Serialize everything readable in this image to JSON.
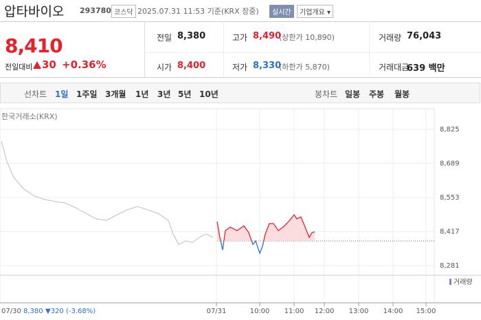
{
  "header": {
    "name": "압타바이오",
    "code": "293780",
    "market": "코스닥",
    "time": "2025.07.31 11:53 기준(KRX 장중)",
    "realtime_button": "실시간",
    "company_button": "기업개요"
  },
  "price": {
    "current": "8,410",
    "change_label": "전일대비",
    "change": "30",
    "change_rate": "+0.36%"
  },
  "quote_table": {
    "rows": [
      [
        {
          "label": "전일",
          "value": "8,380"
        },
        {
          "label": "고가",
          "value": "8,490",
          "sub": "(상한가 10,890)"
        },
        {
          "label": "거래량",
          "value": "76,043"
        }
      ],
      [
        {
          "label": "시가",
          "value": "8,400"
        },
        {
          "label": "저가",
          "value": "8,330",
          "sub": "(하한가 5,870)"
        },
        {
          "label": "거래대금",
          "value": "639 백만"
        }
      ]
    ]
  },
  "tabs": {
    "line_label": "선차트",
    "line_items": [
      "1일",
      "1주일",
      "3개월",
      "1년",
      "3년",
      "5년",
      "10년"
    ],
    "candle_label": "봉차트",
    "candle_items": [
      "일봉",
      "주봉",
      "월봉"
    ]
  },
  "chart_data": {
    "type": "line",
    "source": "한국거래소(KRX)",
    "volume_label": "거래량",
    "base_value": 8380,
    "series": [
      {
        "color": "#c8c8cc",
        "x": [
          0.04,
          0.2,
          0.4,
          0.7,
          1.0,
          1.3,
          1.6,
          1.9,
          2.2,
          2.5,
          2.8,
          3.1,
          3.4,
          3.7,
          4.0,
          4.3,
          4.6,
          4.9,
          5.04,
          5.2,
          5.4,
          5.6,
          5.8,
          6.0,
          6.2
        ],
        "values": [
          8778,
          8696,
          8633,
          8586,
          8559,
          8545,
          8537,
          8531,
          8512,
          8490,
          8468,
          8462,
          8484,
          8504,
          8517,
          8504,
          8490,
          8462,
          8407,
          8366,
          8380,
          8374,
          8394,
          8407,
          8394
        ]
      },
      {
        "color": "#e8202b",
        "color_below": "#2a6fd6",
        "fill": "#fbdde0",
        "x": [
          6.32,
          6.4,
          6.48,
          6.56,
          6.7,
          6.9,
          7.1,
          7.24,
          7.36,
          7.44,
          7.56,
          7.64,
          7.72,
          7.84,
          7.96,
          8.1,
          8.24,
          8.4,
          8.56,
          8.64,
          8.76,
          8.88,
          9.0,
          9.08,
          9.16
        ],
        "values": [
          8457,
          8394,
          8344,
          8421,
          8435,
          8421,
          8440,
          8413,
          8366,
          8380,
          8331,
          8358,
          8407,
          8449,
          8449,
          8421,
          8435,
          8457,
          8484,
          8468,
          8476,
          8435,
          8394,
          8413,
          8416
        ]
      }
    ],
    "xlim": [
      0,
      12.64
    ],
    "ylim": [
      8254,
      8852
    ],
    "xticks": [
      {
        "value": 6.3,
        "label": "07/31"
      },
      {
        "value": 7.56,
        "label": "10:00"
      },
      {
        "value": 8.56,
        "label": "11:00"
      },
      {
        "value": 9.44,
        "label": "12:00"
      },
      {
        "value": 10.44,
        "label": "13:00"
      },
      {
        "value": 11.44,
        "label": "14:00"
      },
      {
        "value": 12.4,
        "label": "15:00"
      }
    ],
    "yticks": [
      {
        "value": 8825,
        "label": "8,825"
      },
      {
        "value": 8689,
        "label": "8,689"
      },
      {
        "value": 8553,
        "label": "8,553"
      },
      {
        "value": 8417,
        "label": "8,417"
      },
      {
        "value": 8281,
        "label": "8,281"
      }
    ],
    "grid": true
  },
  "footer": {
    "date": "07/30",
    "close": "8,380",
    "change": "▼320 (-3.68%)"
  }
}
